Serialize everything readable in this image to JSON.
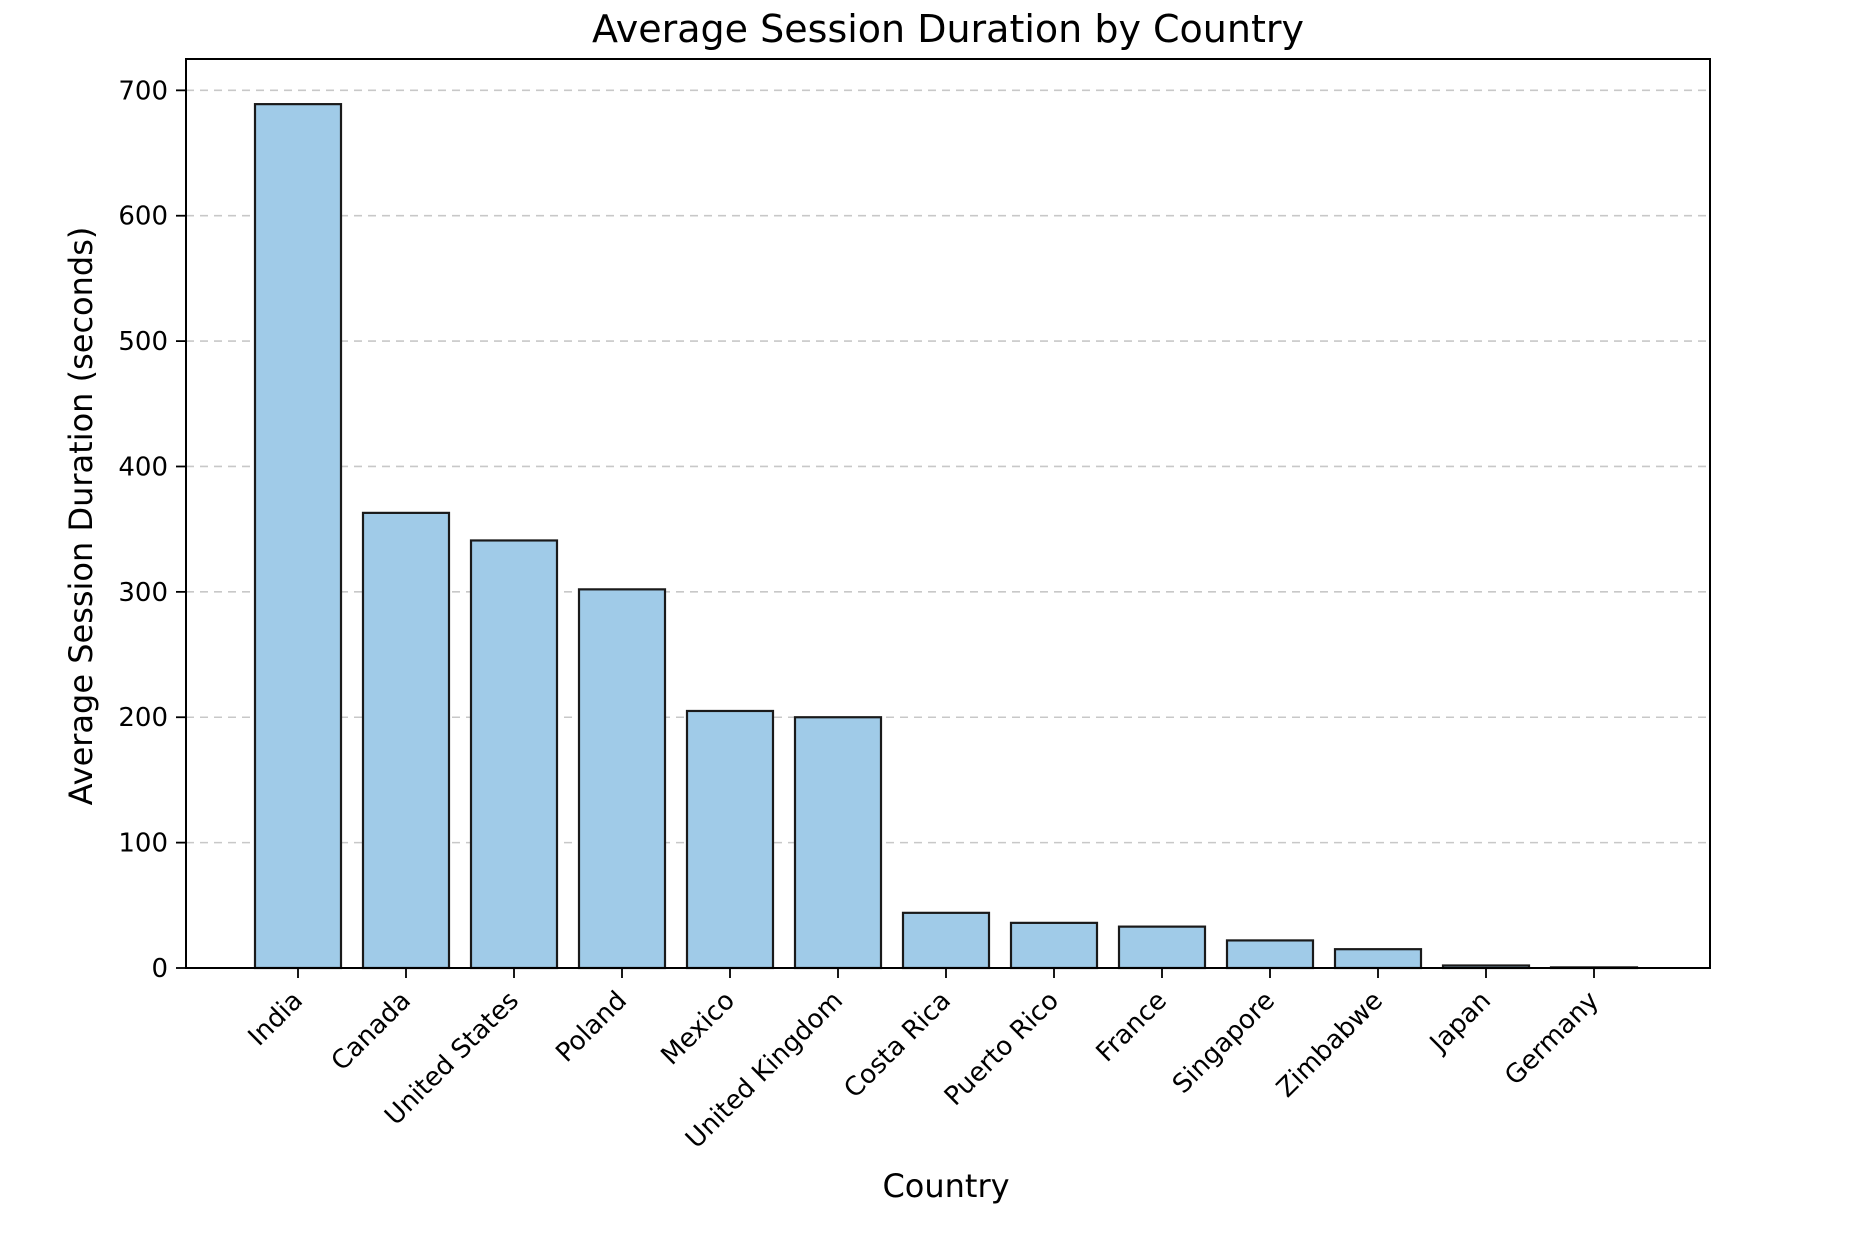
{
  "chart_data": {
    "type": "bar",
    "title": "Average Session Duration by Country",
    "xlabel": "Country",
    "ylabel": "Average Session Duration (seconds)",
    "categories": [
      "India",
      "Canada",
      "United States",
      "Poland",
      "Mexico",
      "United Kingdom",
      "Costa Rica",
      "Puerto Rico",
      "France",
      "Singapore",
      "Zimbabwe",
      "Japan",
      "Germany"
    ],
    "values": [
      689,
      363,
      341,
      302,
      205,
      200,
      44,
      36,
      33,
      22,
      15,
      2,
      0.5
    ],
    "ylim": [
      0,
      725
    ],
    "yticks": [
      0,
      100,
      200,
      300,
      400,
      500,
      600,
      700
    ],
    "grid": "horizontal-dashed",
    "bar_color": "#a0cbe8",
    "edge_color": "#1a1a1a"
  }
}
